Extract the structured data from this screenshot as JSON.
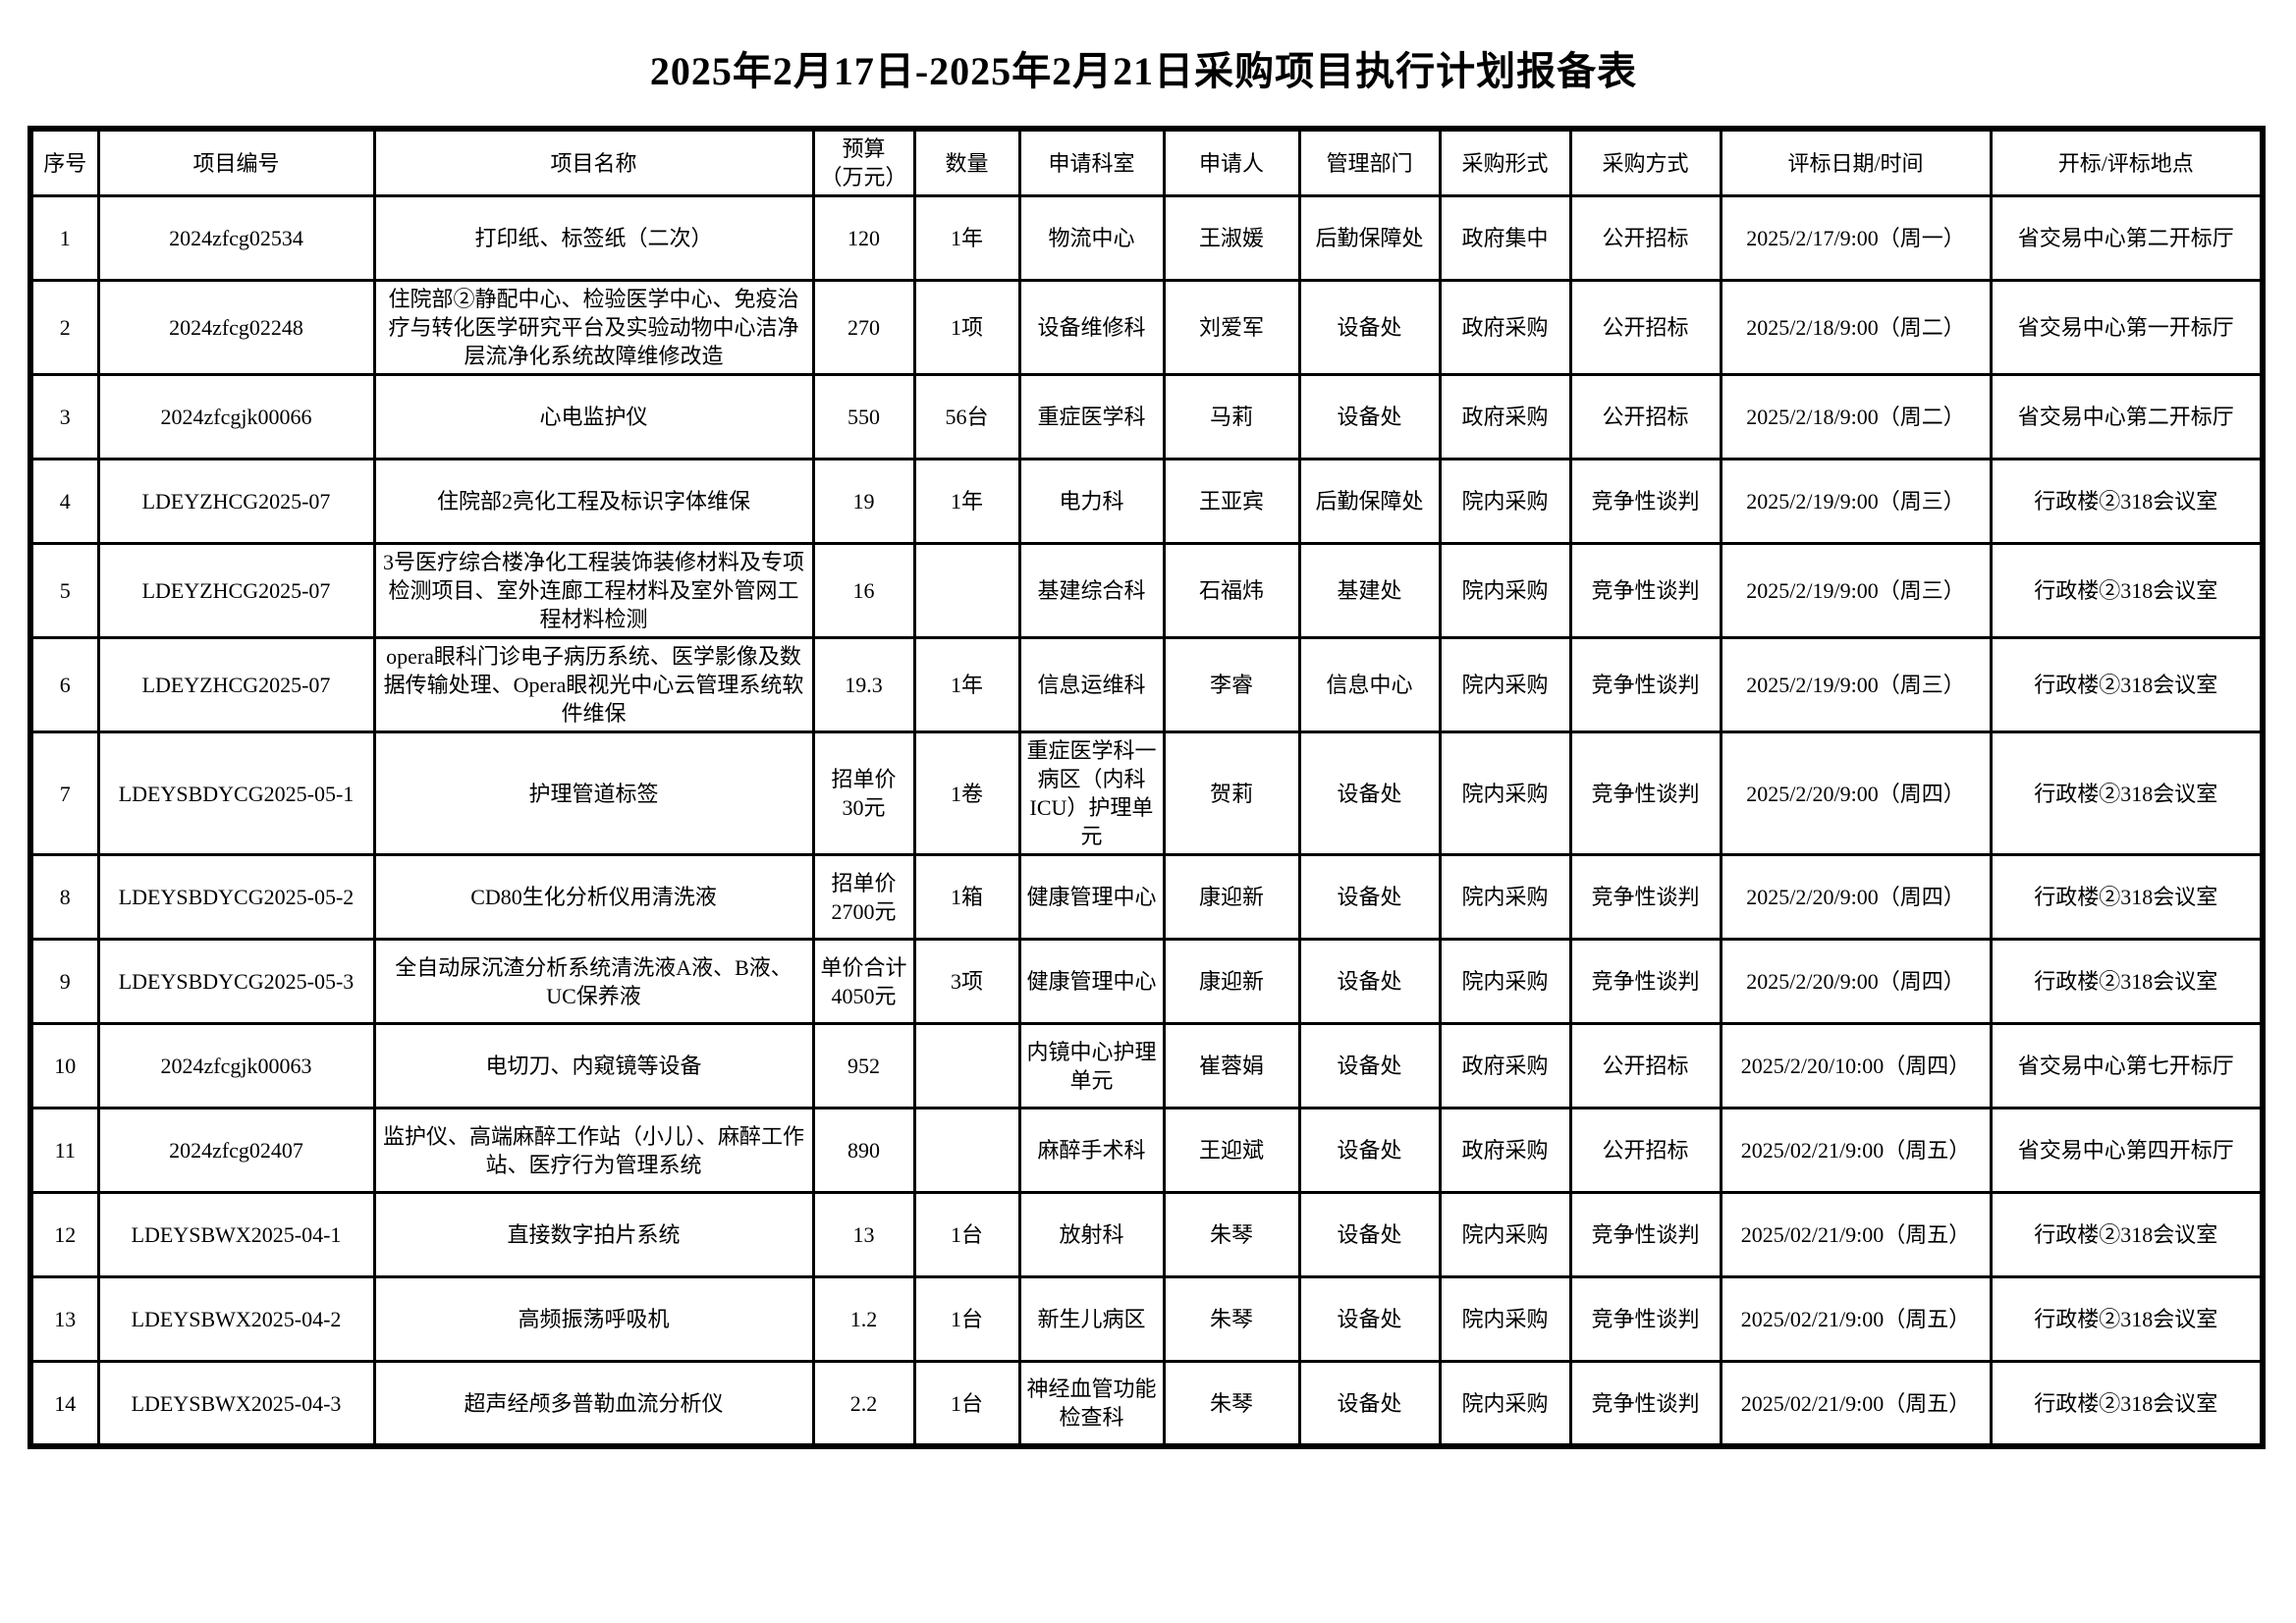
{
  "title": "2025年2月17日-2025年2月21日采购项目执行计划报备表",
  "table": {
    "columns": [
      "序号",
      "项目编号",
      "项目名称",
      "预算\n（万元）",
      "数量",
      "申请科室",
      "申请人",
      "管理部门",
      "采购形式",
      "采购方式",
      "评标日期/时间",
      "开标/评标地点"
    ],
    "rows": [
      [
        "1",
        "2024zfcg02534",
        "打印纸、标签纸（二次）",
        "120",
        "1年",
        "物流中心",
        "王淑媛",
        "后勤保障处",
        "政府集中",
        "公开招标",
        "2025/2/17/9:00（周一）",
        "省交易中心第二开标厅"
      ],
      [
        "2",
        "2024zfcg02248",
        "住院部②静配中心、检验医学中心、免疫治疗与转化医学研究平台及实验动物中心洁净层流净化系统故障维修改造",
        "270",
        "1项",
        "设备维修科",
        "刘爱军",
        "设备处",
        "政府采购",
        "公开招标",
        "2025/2/18/9:00（周二）",
        "省交易中心第一开标厅"
      ],
      [
        "3",
        "2024zfcgjk00066",
        "心电监护仪",
        "550",
        "56台",
        "重症医学科",
        "马莉",
        "设备处",
        "政府采购",
        "公开招标",
        "2025/2/18/9:00（周二）",
        "省交易中心第二开标厅"
      ],
      [
        "4",
        "LDEYZHCG2025-07",
        "住院部2亮化工程及标识字体维保",
        "19",
        "1年",
        "电力科",
        "王亚宾",
        "后勤保障处",
        "院内采购",
        "竞争性谈判",
        "2025/2/19/9:00（周三）",
        "行政楼②318会议室"
      ],
      [
        "5",
        "LDEYZHCG2025-07",
        "3号医疗综合楼净化工程装饰装修材料及专项检测项目、室外连廊工程材料及室外管网工程材料检测",
        "16",
        "",
        "基建综合科",
        "石福炜",
        "基建处",
        "院内采购",
        "竞争性谈判",
        "2025/2/19/9:00（周三）",
        "行政楼②318会议室"
      ],
      [
        "6",
        "LDEYZHCG2025-07",
        "opera眼科门诊电子病历系统、医学影像及数据传输处理、Opera眼视光中心云管理系统软件维保",
        "19.3",
        "1年",
        "信息运维科",
        "李睿",
        "信息中心",
        "院内采购",
        "竞争性谈判",
        "2025/2/19/9:00（周三）",
        "行政楼②318会议室"
      ],
      [
        "7",
        "LDEYSBDYCG2025-05-1",
        "护理管道标签",
        "招单价\n30元",
        "1卷",
        "重症医学科一病区（内科ICU）护理单元",
        "贺莉",
        "设备处",
        "院内采购",
        "竞争性谈判",
        "2025/2/20/9:00（周四）",
        "行政楼②318会议室"
      ],
      [
        "8",
        "LDEYSBDYCG2025-05-2",
        "CD80生化分析仪用清洗液",
        "招单价\n2700元",
        "1箱",
        "健康管理中心",
        "康迎新",
        "设备处",
        "院内采购",
        "竞争性谈判",
        "2025/2/20/9:00（周四）",
        "行政楼②318会议室"
      ],
      [
        "9",
        "LDEYSBDYCG2025-05-3",
        "全自动尿沉渣分析系统清洗液A液、B液、UC保养液",
        "单价合计\n4050元",
        "3项",
        "健康管理中心",
        "康迎新",
        "设备处",
        "院内采购",
        "竞争性谈判",
        "2025/2/20/9:00（周四）",
        "行政楼②318会议室"
      ],
      [
        "10",
        "2024zfcgjk00063",
        "电切刀、内窥镜等设备",
        "952",
        "",
        "内镜中心护理单元",
        "崔蓉娟",
        "设备处",
        "政府采购",
        "公开招标",
        "2025/2/20/10:00（周四）",
        "省交易中心第七开标厅"
      ],
      [
        "11",
        "2024zfcg02407",
        "监护仪、高端麻醉工作站（小儿）、麻醉工作站、医疗行为管理系统",
        "890",
        "",
        "麻醉手术科",
        "王迎斌",
        "设备处",
        "政府采购",
        "公开招标",
        "2025/02/21/9:00（周五）",
        "省交易中心第四开标厅"
      ],
      [
        "12",
        "LDEYSBWX2025-04-1",
        "直接数字拍片系统",
        "13",
        "1台",
        "放射科",
        "朱琴",
        "设备处",
        "院内采购",
        "竞争性谈判",
        "2025/02/21/9:00（周五）",
        "行政楼②318会议室"
      ],
      [
        "13",
        "LDEYSBWX2025-04-2",
        "高频振荡呼吸机",
        "1.2",
        "1台",
        "新生儿病区",
        "朱琴",
        "设备处",
        "院内采购",
        "竞争性谈判",
        "2025/02/21/9:00（周五）",
        "行政楼②318会议室"
      ],
      [
        "14",
        "LDEYSBWX2025-04-3",
        "超声经颅多普勒血流分析仪",
        "2.2",
        "1台",
        "神经血管功能检查科",
        "朱琴",
        "设备处",
        "院内采购",
        "竞争性谈判",
        "2025/02/21/9:00（周五）",
        "行政楼②318会议室"
      ]
    ]
  }
}
